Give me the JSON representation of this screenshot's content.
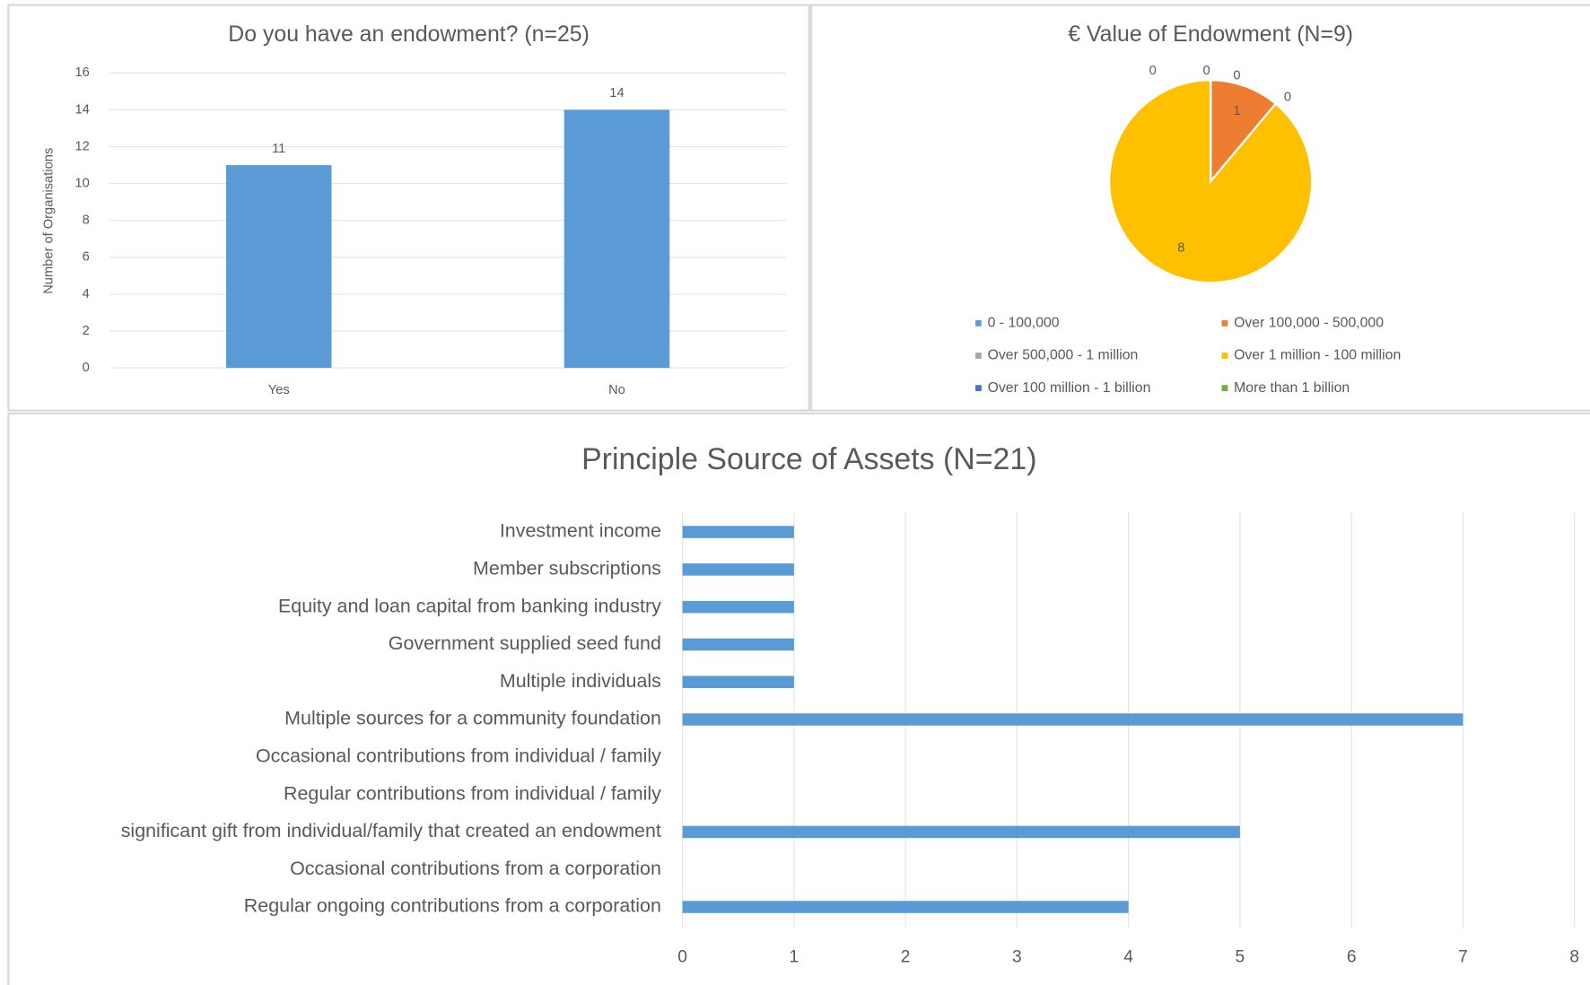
{
  "chart_data": [
    {
      "type": "bar",
      "title": "Do you have an endowment? (n=25)",
      "y_label": "Number of Organisations",
      "categories": [
        "Yes",
        "No"
      ],
      "values": [
        11,
        14
      ],
      "color": "#5b9bd5",
      "ylim": [
        0,
        16
      ],
      "yticks": [
        0,
        2,
        4,
        6,
        8,
        10,
        12,
        14,
        16
      ],
      "grid": true
    },
    {
      "type": "pie",
      "title": "€ Value of Endowment (N=9)",
      "categories": [
        "0 - 100,000",
        "Over 100,000 - 500,000",
        "Over 500,000 - 1 million",
        "Over 1 million - 100 million",
        "Over 100 million - 1 billion",
        "More than 1 billion"
      ],
      "values": [
        0,
        1,
        0,
        8,
        0,
        0
      ],
      "colors": [
        "#5b9bd5",
        "#ed7d31",
        "#a5a5a5",
        "#ffc000",
        "#4472c4",
        "#70ad47"
      ],
      "legend": "bottom"
    },
    {
      "type": "hbar",
      "title": "Principle Source of Assets (N=21)",
      "categories": [
        "Investment income",
        "Member subscriptions",
        "Equity and loan capital from banking industry",
        "Government supplied seed fund",
        "Multiple individuals",
        "Multiple sources for a community foundation",
        "Occasional contributions from individual / family",
        "Regular contributions from individual / family",
        "significant gift from individual/family that created an endowment",
        "Occasional contributions from a corporation",
        "Regular ongoing contributions from a corporation"
      ],
      "values": [
        1,
        1,
        1,
        1,
        1,
        7,
        0,
        0,
        5,
        0,
        4
      ],
      "color": "#5b9bd5",
      "xlim": [
        0,
        8
      ],
      "xticks": [
        0,
        1,
        2,
        3,
        4,
        5,
        6,
        7,
        8
      ],
      "grid": true
    }
  ]
}
